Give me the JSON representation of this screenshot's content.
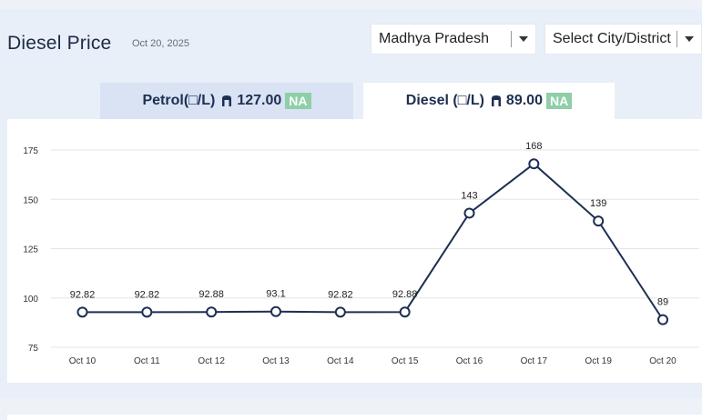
{
  "header": {
    "title": "Diesel Price",
    "date": "Oct 20, 2025"
  },
  "filters": {
    "state": {
      "value": "Madhya Pradesh"
    },
    "city": {
      "value": "Select City/District"
    }
  },
  "tabs": [
    {
      "label": "Petrol(□/L)",
      "price": "127.00",
      "badge": "NA",
      "active": false
    },
    {
      "label": "Diesel (□/L)",
      "price": "89.00",
      "badge": "NA",
      "active": true
    }
  ],
  "colors": {
    "line": "#1d2f52",
    "badge": "#8ecfa8",
    "grid": "#e6e6e6"
  },
  "chart_data": {
    "type": "line",
    "categories": [
      "Oct 10",
      "Oct 11",
      "Oct 12",
      "Oct 13",
      "Oct 14",
      "Oct 15",
      "Oct 16",
      "Oct 17",
      "Oct 19",
      "Oct 20"
    ],
    "series": [
      {
        "values": [
          92.82,
          92.82,
          92.88,
          93.1,
          92.82,
          92.88,
          143,
          168,
          139,
          89
        ],
        "labels": [
          "92.82",
          "92.82",
          "92.88",
          "93.1",
          "92.82",
          "92.88",
          "143",
          "168",
          "139",
          "89"
        ]
      }
    ],
    "yticks": [
      "75",
      "100",
      "125",
      "150",
      "175"
    ],
    "ylim": [
      75,
      175
    ],
    "grid": true
  }
}
